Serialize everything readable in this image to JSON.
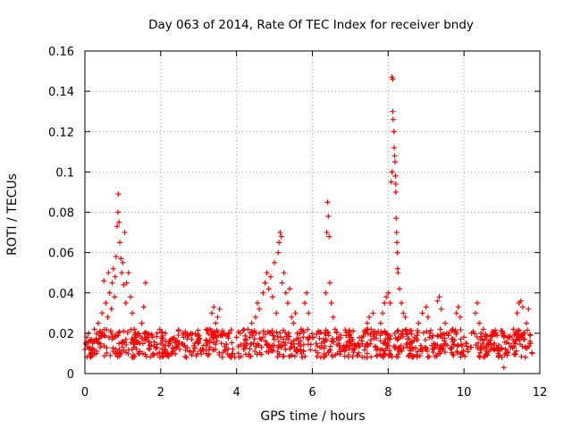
{
  "chart_data": {
    "type": "scatter",
    "title": "Day 063 of 2014, Rate Of TEC Index for receiver bndy",
    "xlabel": "GPS time / hours",
    "ylabel": "ROTI / TECUs",
    "xlim": [
      0,
      12
    ],
    "ylim": [
      0,
      0.16
    ],
    "x_ticks": [
      0,
      2,
      4,
      6,
      8,
      10,
      12
    ],
    "x_tick_labels": [
      "0",
      "2",
      "4",
      "6",
      "8",
      "10",
      "12"
    ],
    "y_ticks": [
      0,
      0.02,
      0.04,
      0.06,
      0.08,
      0.1,
      0.12,
      0.14,
      0.16
    ],
    "y_tick_labels": [
      "0",
      "0.02",
      "0.04",
      "0.06",
      "0.08",
      "0.1",
      "0.12",
      "0.14",
      "0.16"
    ],
    "grid": true,
    "marker": "+",
    "color": "#ff0000",
    "series": [
      {
        "name": "ROTI",
        "points": [
          [
            0.0,
            0.012
          ],
          [
            0.05,
            0.018
          ],
          [
            0.1,
            0.02
          ],
          [
            0.15,
            0.008
          ],
          [
            0.2,
            0.015
          ],
          [
            0.25,
            0.022
          ],
          [
            0.3,
            0.01
          ],
          [
            0.35,
            0.025
          ],
          [
            0.4,
            0.013
          ],
          [
            0.45,
            0.03
          ],
          [
            0.5,
            0.046
          ],
          [
            0.55,
            0.035
          ],
          [
            0.6,
            0.028
          ],
          [
            0.62,
            0.05
          ],
          [
            0.65,
            0.04
          ],
          [
            0.7,
            0.032
          ],
          [
            0.72,
            0.045
          ],
          [
            0.75,
            0.052
          ],
          [
            0.78,
            0.038
          ],
          [
            0.8,
            0.048
          ],
          [
            0.82,
            0.058
          ],
          [
            0.85,
            0.073
          ],
          [
            0.87,
            0.08
          ],
          [
            0.88,
            0.089
          ],
          [
            0.9,
            0.075
          ],
          [
            0.92,
            0.065
          ],
          [
            0.95,
            0.057
          ],
          [
            0.97,
            0.05
          ],
          [
            1.0,
            0.055
          ],
          [
            1.02,
            0.044
          ],
          [
            1.05,
            0.07
          ],
          [
            1.08,
            0.035
          ],
          [
            1.1,
            0.045
          ],
          [
            1.15,
            0.05
          ],
          [
            1.2,
            0.038
          ],
          [
            1.25,
            0.03
          ],
          [
            1.3,
            0.022
          ],
          [
            1.35,
            0.018
          ],
          [
            1.4,
            0.02
          ],
          [
            1.45,
            0.015
          ],
          [
            1.5,
            0.025
          ],
          [
            1.55,
            0.033
          ],
          [
            1.6,
            0.045
          ],
          [
            1.65,
            0.018
          ],
          [
            1.7,
            0.012
          ],
          [
            1.75,
            0.014
          ],
          [
            1.8,
            0.01
          ],
          [
            1.9,
            0.013
          ],
          [
            2.0,
            0.015
          ],
          [
            2.1,
            0.011
          ],
          [
            2.2,
            0.014
          ],
          [
            2.3,
            0.01
          ],
          [
            2.4,
            0.016
          ],
          [
            2.5,
            0.012
          ],
          [
            2.6,
            0.018
          ],
          [
            2.7,
            0.013
          ],
          [
            2.8,
            0.02
          ],
          [
            2.9,
            0.015
          ],
          [
            3.0,
            0.017
          ],
          [
            3.1,
            0.012
          ],
          [
            3.2,
            0.014
          ],
          [
            3.3,
            0.022
          ],
          [
            3.35,
            0.03
          ],
          [
            3.4,
            0.033
          ],
          [
            3.45,
            0.025
          ],
          [
            3.5,
            0.028
          ],
          [
            3.55,
            0.032
          ],
          [
            3.6,
            0.015
          ],
          [
            3.9,
            0.012
          ],
          [
            4.0,
            0.018
          ],
          [
            4.05,
            0.01
          ],
          [
            4.1,
            0.02
          ],
          [
            4.2,
            0.015
          ],
          [
            4.3,
            0.022
          ],
          [
            4.35,
            0.018
          ],
          [
            4.4,
            0.025
          ],
          [
            4.5,
            0.028
          ],
          [
            4.55,
            0.035
          ],
          [
            4.6,
            0.032
          ],
          [
            4.7,
            0.04
          ],
          [
            4.75,
            0.045
          ],
          [
            4.8,
            0.05
          ],
          [
            4.85,
            0.042
          ],
          [
            4.9,
            0.048
          ],
          [
            4.95,
            0.038
          ],
          [
            5.0,
            0.055
          ],
          [
            5.05,
            0.03
          ],
          [
            5.1,
            0.06
          ],
          [
            5.12,
            0.065
          ],
          [
            5.15,
            0.07
          ],
          [
            5.18,
            0.068
          ],
          [
            5.2,
            0.045
          ],
          [
            5.25,
            0.05
          ],
          [
            5.3,
            0.04
          ],
          [
            5.35,
            0.035
          ],
          [
            5.4,
            0.042
          ],
          [
            5.45,
            0.028
          ],
          [
            5.5,
            0.025
          ],
          [
            5.55,
            0.03
          ],
          [
            5.6,
            0.02
          ],
          [
            5.7,
            0.022
          ],
          [
            5.8,
            0.035
          ],
          [
            5.85,
            0.04
          ],
          [
            5.9,
            0.03
          ],
          [
            6.0,
            0.018
          ],
          [
            6.1,
            0.015
          ],
          [
            6.2,
            0.013
          ],
          [
            6.3,
            0.016
          ],
          [
            6.35,
            0.04
          ],
          [
            6.38,
            0.07
          ],
          [
            6.4,
            0.085
          ],
          [
            6.42,
            0.078
          ],
          [
            6.44,
            0.068
          ],
          [
            6.46,
            0.045
          ],
          [
            6.5,
            0.035
          ],
          [
            6.55,
            0.028
          ],
          [
            6.6,
            0.022
          ],
          [
            6.7,
            0.015
          ],
          [
            6.8,
            0.012
          ],
          [
            6.9,
            0.014
          ],
          [
            7.0,
            0.016
          ],
          [
            7.1,
            0.012
          ],
          [
            7.2,
            0.015
          ],
          [
            7.3,
            0.018
          ],
          [
            7.4,
            0.02
          ],
          [
            7.45,
            0.025
          ],
          [
            7.5,
            0.028
          ],
          [
            7.55,
            0.022
          ],
          [
            7.6,
            0.03
          ],
          [
            7.7,
            0.02
          ],
          [
            7.8,
            0.025
          ],
          [
            7.85,
            0.03
          ],
          [
            7.9,
            0.035
          ],
          [
            7.95,
            0.038
          ],
          [
            8.0,
            0.04
          ],
          [
            8.05,
            0.035
          ],
          [
            8.08,
            0.095
          ],
          [
            8.1,
            0.1
          ],
          [
            8.1,
            0.147
          ],
          [
            8.12,
            0.146
          ],
          [
            8.12,
            0.13
          ],
          [
            8.13,
            0.126
          ],
          [
            8.15,
            0.12
          ],
          [
            8.16,
            0.112
          ],
          [
            8.17,
            0.108
          ],
          [
            8.18,
            0.105
          ],
          [
            8.19,
            0.098
          ],
          [
            8.2,
            0.094
          ],
          [
            8.2,
            0.09
          ],
          [
            8.21,
            0.077
          ],
          [
            8.22,
            0.07
          ],
          [
            8.23,
            0.065
          ],
          [
            8.24,
            0.06
          ],
          [
            8.25,
            0.052
          ],
          [
            8.26,
            0.05
          ],
          [
            8.3,
            0.042
          ],
          [
            8.35,
            0.035
          ],
          [
            8.4,
            0.03
          ],
          [
            8.45,
            0.028
          ],
          [
            8.5,
            0.02
          ],
          [
            8.6,
            0.015
          ],
          [
            8.7,
            0.018
          ],
          [
            8.8,
            0.025
          ],
          [
            8.9,
            0.03
          ],
          [
            9.0,
            0.033
          ],
          [
            9.05,
            0.028
          ],
          [
            9.1,
            0.02
          ],
          [
            9.2,
            0.015
          ],
          [
            9.3,
            0.036
          ],
          [
            9.35,
            0.038
          ],
          [
            9.4,
            0.032
          ],
          [
            9.5,
            0.025
          ],
          [
            9.6,
            0.02
          ],
          [
            9.7,
            0.022
          ],
          [
            9.8,
            0.03
          ],
          [
            9.85,
            0.033
          ],
          [
            9.9,
            0.028
          ],
          [
            10.0,
            0.018
          ],
          [
            10.1,
            0.012
          ],
          [
            10.2,
            0.02
          ],
          [
            10.3,
            0.03
          ],
          [
            10.35,
            0.035
          ],
          [
            10.4,
            0.025
          ],
          [
            10.5,
            0.015
          ],
          [
            10.6,
            0.01
          ],
          [
            10.7,
            0.012
          ],
          [
            10.8,
            0.015
          ],
          [
            10.9,
            0.01
          ],
          [
            11.0,
            0.008
          ],
          [
            11.05,
            0.003
          ],
          [
            11.1,
            0.012
          ],
          [
            11.2,
            0.018
          ],
          [
            11.3,
            0.022
          ],
          [
            11.35,
            0.02
          ],
          [
            11.4,
            0.03
          ],
          [
            11.45,
            0.035
          ],
          [
            11.5,
            0.036
          ],
          [
            11.55,
            0.033
          ],
          [
            11.6,
            0.02
          ],
          [
            11.65,
            0.025
          ],
          [
            11.7,
            0.032
          ],
          [
            11.75,
            0.015
          ],
          [
            11.8,
            0.01
          ]
        ],
        "generated_background": {
          "count": 900,
          "x_range": [
            0,
            11.8
          ],
          "y_base": 0.008,
          "y_spread": 0.014
        }
      }
    ]
  }
}
